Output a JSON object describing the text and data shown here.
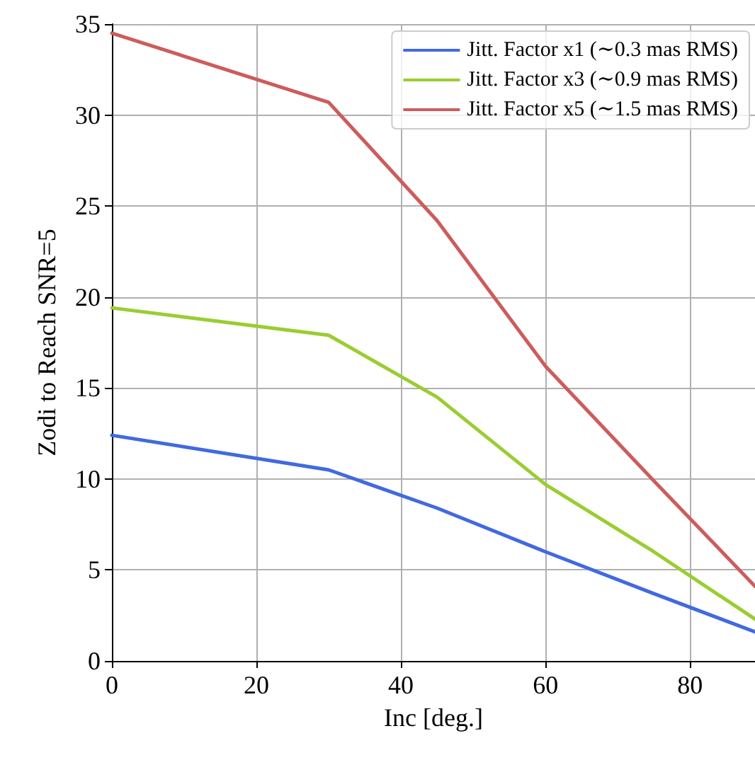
{
  "chart_data": {
    "type": "line",
    "xlabel": "Inc [deg.]",
    "ylabel": "Zodi to Reach SNR=5",
    "x": [
      0,
      30,
      45,
      60,
      75,
      89
    ],
    "series": [
      {
        "name": "Jitt. Factor x1 (∼0.3 mas RMS)",
        "color": "#4169e1",
        "values": [
          12.4,
          10.5,
          8.4,
          6.0,
          3.7,
          1.6
        ]
      },
      {
        "name": "Jitt. Factor x3 (∼0.9 mas RMS)",
        "color": "#9acd32",
        "values": [
          19.4,
          17.9,
          14.5,
          9.7,
          6.0,
          2.3
        ]
      },
      {
        "name": "Jitt. Factor x5 (∼1.5 mas RMS)",
        "color": "#cd5c5c",
        "values": [
          34.5,
          30.7,
          24.2,
          16.2,
          9.9,
          4.1
        ]
      }
    ],
    "xlim": [
      0,
      89
    ],
    "xticks": [
      0,
      20,
      40,
      60,
      80
    ],
    "ylim": [
      0,
      35
    ],
    "yticks": [
      0,
      5,
      10,
      15,
      20,
      25,
      30,
      35
    ],
    "grid": true,
    "legend": "top right",
    "marker": "none",
    "line_style": "solid"
  }
}
